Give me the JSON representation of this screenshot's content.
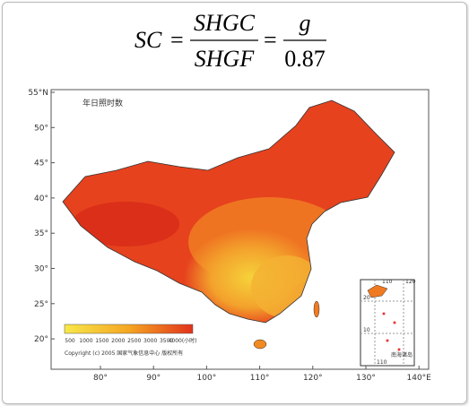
{
  "formula": {
    "lhs": "SC",
    "eq1": "=",
    "num1": "SHGC",
    "den1": "SHGF",
    "eq2": "=",
    "num2": "g",
    "den2": "0.87"
  },
  "map": {
    "title": "年日照时数",
    "lat_labels": [
      "55°N",
      "50°",
      "45°",
      "40°",
      "35°",
      "30°",
      "25°",
      "20°"
    ],
    "lon_labels": [
      "80°",
      "90°",
      "100°",
      "110°",
      "120°",
      "130°",
      "140°E"
    ],
    "legend_labels": [
      "500",
      "1000",
      "1500",
      "2000",
      "2500",
      "3000",
      "3500",
      "4000(小时)"
    ],
    "copyright": "Copyright (c) 2005 国家气象信息中心 版权所有",
    "inset": {
      "label": "南海诸岛",
      "top_labels": [
        "110",
        "120"
      ],
      "side_labels": [
        "20",
        "10"
      ],
      "bottom_label": "110"
    }
  }
}
